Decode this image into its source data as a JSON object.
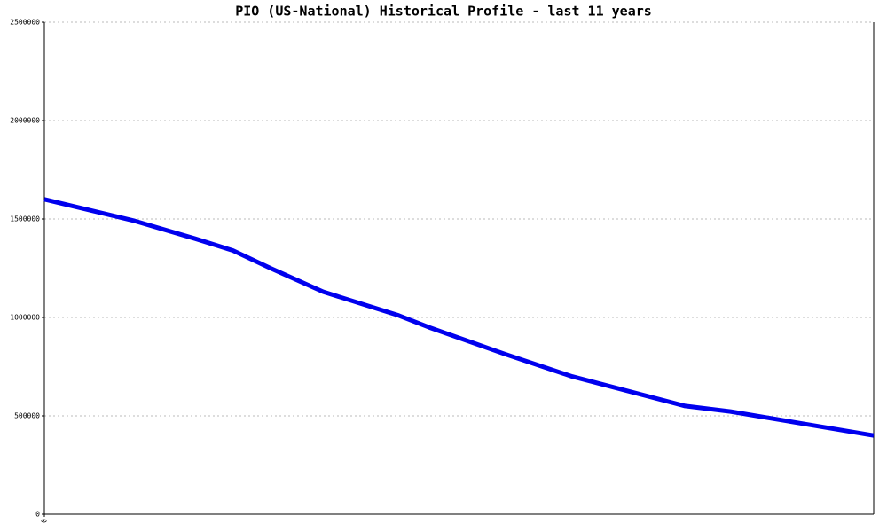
{
  "chart_data": {
    "type": "line",
    "title": "PIO (US-National) Historical Profile - last 11 years",
    "x": [
      0,
      1.2,
      2.0,
      2.5,
      3.0,
      3.7,
      4.7,
      5.1,
      6.1,
      7.0,
      8.5,
      9.1,
      11
    ],
    "series": [
      {
        "name": "PIO",
        "color": "#0000ee",
        "values": [
          1600000,
          1490000,
          1400000,
          1340000,
          1250000,
          1130000,
          1010000,
          950000,
          815000,
          700000,
          550000,
          522000,
          400000
        ]
      }
    ],
    "xlim": [
      0,
      11
    ],
    "xticks": [
      0
    ],
    "ylim": [
      0,
      2500000
    ],
    "yticks": [
      0,
      500000,
      1000000,
      1500000,
      2000000,
      2500000
    ],
    "grid": true
  }
}
